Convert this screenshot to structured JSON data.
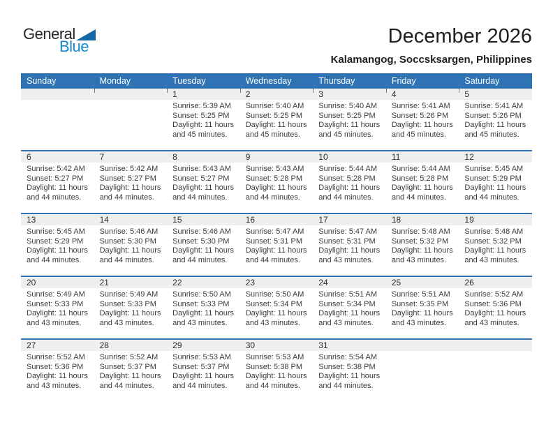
{
  "logo": {
    "part1": "General",
    "part2": "Blue"
  },
  "header": {
    "title": "December 2026",
    "subtitle": "Kalamangog, Soccsksargen, Philippines"
  },
  "colors": {
    "header_blue": "#2E74B5",
    "band_gray": "#EFEFEF",
    "logo_blue": "#1886C9",
    "triangle_blue": "#1568A8",
    "cell_text": "#3C3C3C"
  },
  "calendar": {
    "day_headers": [
      "Sunday",
      "Monday",
      "Tuesday",
      "Wednesday",
      "Thursday",
      "Friday",
      "Saturday"
    ],
    "weeks": [
      [
        null,
        null,
        {
          "date": "1",
          "lines": [
            "Sunrise: 5:39 AM",
            "Sunset: 5:25 PM",
            "Daylight: 11 hours",
            "and 45 minutes."
          ]
        },
        {
          "date": "2",
          "lines": [
            "Sunrise: 5:40 AM",
            "Sunset: 5:25 PM",
            "Daylight: 11 hours",
            "and 45 minutes."
          ]
        },
        {
          "date": "3",
          "lines": [
            "Sunrise: 5:40 AM",
            "Sunset: 5:25 PM",
            "Daylight: 11 hours",
            "and 45 minutes."
          ]
        },
        {
          "date": "4",
          "lines": [
            "Sunrise: 5:41 AM",
            "Sunset: 5:26 PM",
            "Daylight: 11 hours",
            "and 45 minutes."
          ]
        },
        {
          "date": "5",
          "lines": [
            "Sunrise: 5:41 AM",
            "Sunset: 5:26 PM",
            "Daylight: 11 hours",
            "and 45 minutes."
          ]
        }
      ],
      [
        {
          "date": "6",
          "lines": [
            "Sunrise: 5:42 AM",
            "Sunset: 5:27 PM",
            "Daylight: 11 hours",
            "and 44 minutes."
          ]
        },
        {
          "date": "7",
          "lines": [
            "Sunrise: 5:42 AM",
            "Sunset: 5:27 PM",
            "Daylight: 11 hours",
            "and 44 minutes."
          ]
        },
        {
          "date": "8",
          "lines": [
            "Sunrise: 5:43 AM",
            "Sunset: 5:27 PM",
            "Daylight: 11 hours",
            "and 44 minutes."
          ]
        },
        {
          "date": "9",
          "lines": [
            "Sunrise: 5:43 AM",
            "Sunset: 5:28 PM",
            "Daylight: 11 hours",
            "and 44 minutes."
          ]
        },
        {
          "date": "10",
          "lines": [
            "Sunrise: 5:44 AM",
            "Sunset: 5:28 PM",
            "Daylight: 11 hours",
            "and 44 minutes."
          ]
        },
        {
          "date": "11",
          "lines": [
            "Sunrise: 5:44 AM",
            "Sunset: 5:28 PM",
            "Daylight: 11 hours",
            "and 44 minutes."
          ]
        },
        {
          "date": "12",
          "lines": [
            "Sunrise: 5:45 AM",
            "Sunset: 5:29 PM",
            "Daylight: 11 hours",
            "and 44 minutes."
          ]
        }
      ],
      [
        {
          "date": "13",
          "lines": [
            "Sunrise: 5:45 AM",
            "Sunset: 5:29 PM",
            "Daylight: 11 hours",
            "and 44 minutes."
          ]
        },
        {
          "date": "14",
          "lines": [
            "Sunrise: 5:46 AM",
            "Sunset: 5:30 PM",
            "Daylight: 11 hours",
            "and 44 minutes."
          ]
        },
        {
          "date": "15",
          "lines": [
            "Sunrise: 5:46 AM",
            "Sunset: 5:30 PM",
            "Daylight: 11 hours",
            "and 44 minutes."
          ]
        },
        {
          "date": "16",
          "lines": [
            "Sunrise: 5:47 AM",
            "Sunset: 5:31 PM",
            "Daylight: 11 hours",
            "and 44 minutes."
          ]
        },
        {
          "date": "17",
          "lines": [
            "Sunrise: 5:47 AM",
            "Sunset: 5:31 PM",
            "Daylight: 11 hours",
            "and 43 minutes."
          ]
        },
        {
          "date": "18",
          "lines": [
            "Sunrise: 5:48 AM",
            "Sunset: 5:32 PM",
            "Daylight: 11 hours",
            "and 43 minutes."
          ]
        },
        {
          "date": "19",
          "lines": [
            "Sunrise: 5:48 AM",
            "Sunset: 5:32 PM",
            "Daylight: 11 hours",
            "and 43 minutes."
          ]
        }
      ],
      [
        {
          "date": "20",
          "lines": [
            "Sunrise: 5:49 AM",
            "Sunset: 5:33 PM",
            "Daylight: 11 hours",
            "and 43 minutes."
          ]
        },
        {
          "date": "21",
          "lines": [
            "Sunrise: 5:49 AM",
            "Sunset: 5:33 PM",
            "Daylight: 11 hours",
            "and 43 minutes."
          ]
        },
        {
          "date": "22",
          "lines": [
            "Sunrise: 5:50 AM",
            "Sunset: 5:33 PM",
            "Daylight: 11 hours",
            "and 43 minutes."
          ]
        },
        {
          "date": "23",
          "lines": [
            "Sunrise: 5:50 AM",
            "Sunset: 5:34 PM",
            "Daylight: 11 hours",
            "and 43 minutes."
          ]
        },
        {
          "date": "24",
          "lines": [
            "Sunrise: 5:51 AM",
            "Sunset: 5:34 PM",
            "Daylight: 11 hours",
            "and 43 minutes."
          ]
        },
        {
          "date": "25",
          "lines": [
            "Sunrise: 5:51 AM",
            "Sunset: 5:35 PM",
            "Daylight: 11 hours",
            "and 43 minutes."
          ]
        },
        {
          "date": "26",
          "lines": [
            "Sunrise: 5:52 AM",
            "Sunset: 5:36 PM",
            "Daylight: 11 hours",
            "and 43 minutes."
          ]
        }
      ],
      [
        {
          "date": "27",
          "lines": [
            "Sunrise: 5:52 AM",
            "Sunset: 5:36 PM",
            "Daylight: 11 hours",
            "and 43 minutes."
          ]
        },
        {
          "date": "28",
          "lines": [
            "Sunrise: 5:52 AM",
            "Sunset: 5:37 PM",
            "Daylight: 11 hours",
            "and 44 minutes."
          ]
        },
        {
          "date": "29",
          "lines": [
            "Sunrise: 5:53 AM",
            "Sunset: 5:37 PM",
            "Daylight: 11 hours",
            "and 44 minutes."
          ]
        },
        {
          "date": "30",
          "lines": [
            "Sunrise: 5:53 AM",
            "Sunset: 5:38 PM",
            "Daylight: 11 hours",
            "and 44 minutes."
          ]
        },
        {
          "date": "31",
          "lines": [
            "Sunrise: 5:54 AM",
            "Sunset: 5:38 PM",
            "Daylight: 11 hours",
            "and 44 minutes."
          ]
        },
        null,
        null
      ]
    ]
  }
}
